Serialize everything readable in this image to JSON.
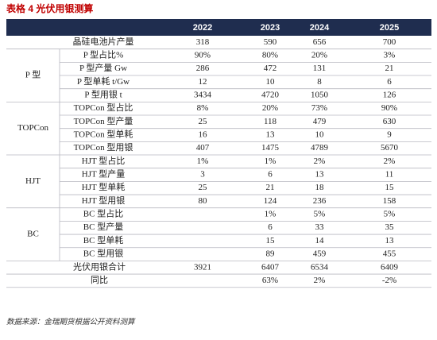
{
  "title": "表格 4 光伏用银测算",
  "table": {
    "columns": [
      "2022",
      "2023",
      "2024",
      "2025"
    ],
    "top": [
      {
        "label": "晶硅电池片产量",
        "cells": [
          "318",
          "590",
          "656",
          "700"
        ]
      }
    ],
    "groups": [
      {
        "name": "P 型",
        "rows": [
          {
            "label": "P 型占比%",
            "cells": [
              "90%",
              "80%",
              "20%",
              "3%"
            ]
          },
          {
            "label": "P 型产量 Gw",
            "cells": [
              "286",
              "472",
              "131",
              "21"
            ]
          },
          {
            "label": "P 型单耗 t/Gw",
            "cells": [
              "12",
              "10",
              "8",
              "6"
            ]
          },
          {
            "label": "P 型用银 t",
            "cells": [
              "3434",
              "4720",
              "1050",
              "126"
            ]
          }
        ]
      },
      {
        "name": "TOPCon",
        "rows": [
          {
            "label": "TOPCon 型占比",
            "cells": [
              "8%",
              "20%",
              "73%",
              "90%"
            ]
          },
          {
            "label": "TOPCon 型产量",
            "cells": [
              "25",
              "118",
              "479",
              "630"
            ]
          },
          {
            "label": "TOPCon 型单耗",
            "cells": [
              "16",
              "13",
              "10",
              "9"
            ]
          },
          {
            "label": "TOPCon 型用银",
            "cells": [
              "407",
              "1475",
              "4789",
              "5670"
            ]
          }
        ]
      },
      {
        "name": "HJT",
        "rows": [
          {
            "label": "HJT 型占比",
            "cells": [
              "1%",
              "1%",
              "2%",
              "2%"
            ]
          },
          {
            "label": "HJT 型产量",
            "cells": [
              "3",
              "6",
              "13",
              "11"
            ]
          },
          {
            "label": "HJT 型单耗",
            "cells": [
              "25",
              "21",
              "18",
              "15"
            ]
          },
          {
            "label": "HJT 型用银",
            "cells": [
              "80",
              "124",
              "236",
              "158"
            ]
          }
        ]
      },
      {
        "name": "BC",
        "rows": [
          {
            "label": "BC 型占比",
            "cells": [
              null,
              "1%",
              "5%",
              "5%"
            ]
          },
          {
            "label": "BC 型产量",
            "cells": [
              null,
              "6",
              "33",
              "35"
            ]
          },
          {
            "label": "BC 型单耗",
            "cells": [
              null,
              "15",
              "14",
              "13"
            ]
          },
          {
            "label": "BC 型用银",
            "cells": [
              null,
              "89",
              "459",
              "455"
            ]
          }
        ]
      }
    ],
    "bottom": [
      {
        "label": "光伏用银合计",
        "cells": [
          "3921",
          "6407",
          "6534",
          "6409"
        ]
      },
      {
        "label": "同比",
        "cells": [
          null,
          "63%",
          "2%",
          "-2%"
        ]
      }
    ]
  },
  "source": "数据来源：金瑞期货根据公开资料测算"
}
